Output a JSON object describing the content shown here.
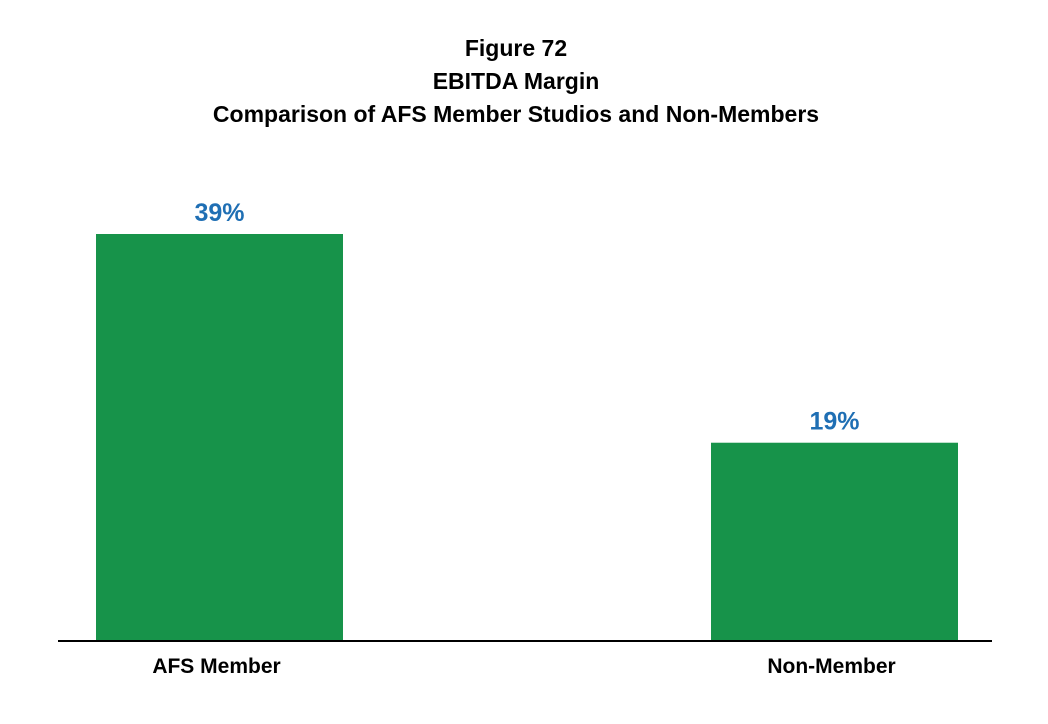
{
  "chart_data": {
    "type": "bar",
    "title_lines": [
      "Figure 72",
      "EBITDA Margin",
      "Comparison of AFS Member Studios and Non-Members"
    ],
    "categories": [
      "AFS Member",
      "Non-Member"
    ],
    "values": [
      39,
      19
    ],
    "value_labels": [
      "39%",
      "19%"
    ],
    "ylim": [
      0,
      39
    ],
    "grid": false,
    "legend": "none",
    "bar_color": "#17934a",
    "label_color": "#1f6fb4",
    "axis_color": "#000000"
  }
}
